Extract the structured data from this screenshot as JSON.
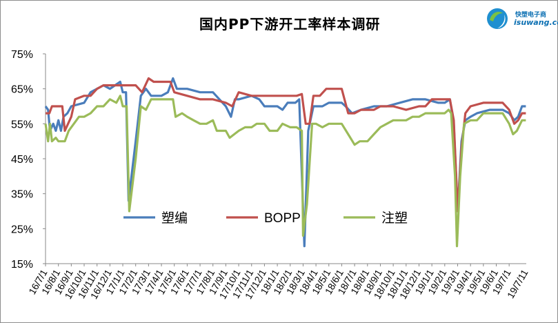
{
  "logo": {
    "name_text": "快塑电子商",
    "url_text": "isuwang.co"
  },
  "chart_data": {
    "type": "line",
    "title": "国内PP下游开工率样本调研",
    "xlabel": "",
    "ylabel": "",
    "ylim": [
      0.15,
      0.75
    ],
    "yticks": [
      0.15,
      0.25,
      0.35,
      0.45,
      0.55,
      0.65,
      0.75
    ],
    "ytick_labels": [
      "15%",
      "25%",
      "35%",
      "45%",
      "55%",
      "65%",
      "75%"
    ],
    "xtick_labels": [
      "16/7/1",
      "16/8/1",
      "16/9/1",
      "16/10/1",
      "16/11/1",
      "16/12/1",
      "17/1/1",
      "17/2/1",
      "17/3/1",
      "17/4/1",
      "17/5/1",
      "17/6/1",
      "17/7/1",
      "17/8/1",
      "17/9/1",
      "17/10/1",
      "17/11/1",
      "17/12/1",
      "18/1/1",
      "18/2/1",
      "18/3/1",
      "18/4/1",
      "18/5/1",
      "18/6/1",
      "18/7/1",
      "18/8/1",
      "18/9/1",
      "18/10/1",
      "18/11/1",
      "18/12/1",
      "19/1/1",
      "19/2/1",
      "19/3/1",
      "19/4/1",
      "19/5/1",
      "19/6/1",
      "19/7/1"
    ],
    "x_range": [
      "16/7/1",
      "19/7/11"
    ],
    "grid": false,
    "legend_position": "center-inside",
    "series": [
      {
        "name": "塑编",
        "color": "#4a7dbb",
        "points": [
          [
            0,
            0.6
          ],
          [
            0.2,
            0.59
          ],
          [
            0.35,
            0.53
          ],
          [
            0.6,
            0.55
          ],
          [
            0.8,
            0.53
          ],
          [
            1.0,
            0.56
          ],
          [
            1.2,
            0.53
          ],
          [
            1.4,
            0.57
          ],
          [
            1.7,
            0.58
          ],
          [
            2.0,
            0.6
          ],
          [
            3.0,
            0.61
          ],
          [
            3.5,
            0.64
          ],
          [
            4.5,
            0.66
          ],
          [
            5.0,
            0.65
          ],
          [
            5.8,
            0.67
          ],
          [
            6.0,
            0.64
          ],
          [
            6.25,
            0.64
          ],
          [
            6.45,
            0.33
          ],
          [
            7.0,
            0.5
          ],
          [
            7.4,
            0.63
          ],
          [
            7.8,
            0.65
          ],
          [
            8.2,
            0.63
          ],
          [
            9.0,
            0.63
          ],
          [
            9.5,
            0.64
          ],
          [
            9.9,
            0.68
          ],
          [
            10.2,
            0.65
          ],
          [
            11.0,
            0.65
          ],
          [
            12.0,
            0.64
          ],
          [
            13.0,
            0.64
          ],
          [
            13.5,
            0.62
          ],
          [
            14.0,
            0.6
          ],
          [
            14.4,
            0.57
          ],
          [
            14.7,
            0.62
          ],
          [
            15.0,
            0.62
          ],
          [
            16.0,
            0.63
          ],
          [
            16.6,
            0.62
          ],
          [
            17.0,
            0.6
          ],
          [
            18.0,
            0.6
          ],
          [
            18.4,
            0.59
          ],
          [
            18.8,
            0.61
          ],
          [
            19.4,
            0.61
          ],
          [
            19.7,
            0.62
          ],
          [
            20.1,
            0.2
          ],
          [
            20.4,
            0.53
          ],
          [
            20.8,
            0.6
          ],
          [
            21.5,
            0.6
          ],
          [
            22.0,
            0.61
          ],
          [
            23.0,
            0.61
          ],
          [
            23.3,
            0.6
          ],
          [
            23.8,
            0.58
          ],
          [
            24.5,
            0.59
          ],
          [
            25.5,
            0.6
          ],
          [
            26.5,
            0.6
          ],
          [
            27.5,
            0.61
          ],
          [
            28.5,
            0.62
          ],
          [
            29.5,
            0.62
          ],
          [
            30.5,
            0.61
          ],
          [
            31.0,
            0.61
          ],
          [
            31.4,
            0.62
          ],
          [
            31.7,
            0.55
          ],
          [
            32.0,
            0.3
          ],
          [
            32.3,
            0.5
          ],
          [
            32.6,
            0.56
          ],
          [
            33.0,
            0.57
          ],
          [
            33.5,
            0.58
          ],
          [
            34.5,
            0.59
          ],
          [
            35.5,
            0.59
          ],
          [
            36.0,
            0.58
          ],
          [
            36.4,
            0.56
          ],
          [
            36.7,
            0.57
          ],
          [
            37.0,
            0.6
          ],
          [
            37.3,
            0.6
          ]
        ]
      },
      {
        "name": "BOPP",
        "color": "#c0504d",
        "points": [
          [
            0,
            0.58
          ],
          [
            0.3,
            0.58
          ],
          [
            0.5,
            0.6
          ],
          [
            1.0,
            0.6
          ],
          [
            1.3,
            0.6
          ],
          [
            1.5,
            0.53
          ],
          [
            2.0,
            0.57
          ],
          [
            2.3,
            0.62
          ],
          [
            3.0,
            0.63
          ],
          [
            3.5,
            0.63
          ],
          [
            4.0,
            0.65
          ],
          [
            4.5,
            0.66
          ],
          [
            5.0,
            0.66
          ],
          [
            6.0,
            0.66
          ],
          [
            6.5,
            0.66
          ],
          [
            7.0,
            0.66
          ],
          [
            7.5,
            0.64
          ],
          [
            8.0,
            0.68
          ],
          [
            8.4,
            0.67
          ],
          [
            9.0,
            0.67
          ],
          [
            9.7,
            0.67
          ],
          [
            10.0,
            0.64
          ],
          [
            11.0,
            0.63
          ],
          [
            12.0,
            0.62
          ],
          [
            13.0,
            0.62
          ],
          [
            14.0,
            0.61
          ],
          [
            14.5,
            0.6
          ],
          [
            15.0,
            0.64
          ],
          [
            16.0,
            0.63
          ],
          [
            17.0,
            0.63
          ],
          [
            19.0,
            0.63
          ],
          [
            19.5,
            0.63
          ],
          [
            19.9,
            0.635
          ],
          [
            20.2,
            0.55
          ],
          [
            20.5,
            0.55
          ],
          [
            20.8,
            0.63
          ],
          [
            21.3,
            0.63
          ],
          [
            21.8,
            0.65
          ],
          [
            22.5,
            0.65
          ],
          [
            23.0,
            0.65
          ],
          [
            23.5,
            0.58
          ],
          [
            24.0,
            0.58
          ],
          [
            24.5,
            0.59
          ],
          [
            25.5,
            0.59
          ],
          [
            26.0,
            0.6
          ],
          [
            27.0,
            0.6
          ],
          [
            28.0,
            0.59
          ],
          [
            29.0,
            0.6
          ],
          [
            29.5,
            0.6
          ],
          [
            30.0,
            0.62
          ],
          [
            31.0,
            0.62
          ],
          [
            31.4,
            0.62
          ],
          [
            31.7,
            0.56
          ],
          [
            32.0,
            0.3
          ],
          [
            32.3,
            0.48
          ],
          [
            32.6,
            0.58
          ],
          [
            33.0,
            0.6
          ],
          [
            34.0,
            0.61
          ],
          [
            35.0,
            0.61
          ],
          [
            35.5,
            0.61
          ],
          [
            36.0,
            0.59
          ],
          [
            36.4,
            0.55
          ],
          [
            36.7,
            0.56
          ],
          [
            37.0,
            0.58
          ],
          [
            37.3,
            0.58
          ]
        ]
      },
      {
        "name": "注塑",
        "color": "#9bbb59",
        "points": [
          [
            0,
            0.55
          ],
          [
            0.2,
            0.5
          ],
          [
            0.35,
            0.55
          ],
          [
            0.5,
            0.5
          ],
          [
            0.8,
            0.51
          ],
          [
            1.0,
            0.5
          ],
          [
            1.5,
            0.5
          ],
          [
            1.8,
            0.53
          ],
          [
            2.2,
            0.55
          ],
          [
            2.6,
            0.57
          ],
          [
            3.0,
            0.57
          ],
          [
            3.5,
            0.58
          ],
          [
            4.0,
            0.6
          ],
          [
            4.5,
            0.6
          ],
          [
            5.0,
            0.62
          ],
          [
            5.5,
            0.61
          ],
          [
            5.8,
            0.63
          ],
          [
            6.0,
            0.6
          ],
          [
            6.3,
            0.6
          ],
          [
            6.5,
            0.3
          ],
          [
            7.0,
            0.45
          ],
          [
            7.4,
            0.6
          ],
          [
            7.8,
            0.59
          ],
          [
            8.2,
            0.62
          ],
          [
            9.0,
            0.62
          ],
          [
            9.5,
            0.62
          ],
          [
            9.9,
            0.62
          ],
          [
            10.1,
            0.57
          ],
          [
            10.6,
            0.58
          ],
          [
            11.0,
            0.57
          ],
          [
            11.5,
            0.56
          ],
          [
            12.0,
            0.55
          ],
          [
            12.5,
            0.55
          ],
          [
            13.0,
            0.56
          ],
          [
            13.3,
            0.53
          ],
          [
            14.0,
            0.53
          ],
          [
            14.3,
            0.51
          ],
          [
            15.0,
            0.53
          ],
          [
            15.5,
            0.54
          ],
          [
            16.0,
            0.54
          ],
          [
            16.4,
            0.55
          ],
          [
            17.0,
            0.55
          ],
          [
            17.4,
            0.53
          ],
          [
            18.0,
            0.53
          ],
          [
            18.4,
            0.55
          ],
          [
            19.0,
            0.54
          ],
          [
            19.5,
            0.54
          ],
          [
            19.9,
            0.53
          ],
          [
            20.0,
            0.23
          ],
          [
            20.3,
            0.32
          ],
          [
            20.7,
            0.55
          ],
          [
            21.0,
            0.55
          ],
          [
            21.5,
            0.54
          ],
          [
            22.0,
            0.55
          ],
          [
            23.0,
            0.55
          ],
          [
            23.5,
            0.52
          ],
          [
            24.0,
            0.49
          ],
          [
            24.4,
            0.5
          ],
          [
            25.0,
            0.5
          ],
          [
            25.5,
            0.52
          ],
          [
            26.0,
            0.54
          ],
          [
            26.5,
            0.55
          ],
          [
            27.0,
            0.56
          ],
          [
            28.0,
            0.56
          ],
          [
            28.5,
            0.57
          ],
          [
            29.0,
            0.57
          ],
          [
            29.5,
            0.58
          ],
          [
            30.5,
            0.58
          ],
          [
            31.0,
            0.58
          ],
          [
            31.3,
            0.59
          ],
          [
            31.5,
            0.58
          ],
          [
            31.8,
            0.4
          ],
          [
            31.95,
            0.2
          ],
          [
            32.2,
            0.4
          ],
          [
            32.5,
            0.55
          ],
          [
            33.0,
            0.56
          ],
          [
            33.5,
            0.56
          ],
          [
            34.0,
            0.58
          ],
          [
            35.0,
            0.58
          ],
          [
            35.5,
            0.58
          ],
          [
            36.0,
            0.55
          ],
          [
            36.3,
            0.52
          ],
          [
            36.6,
            0.53
          ],
          [
            37.0,
            0.56
          ],
          [
            37.3,
            0.56
          ]
        ]
      }
    ]
  }
}
